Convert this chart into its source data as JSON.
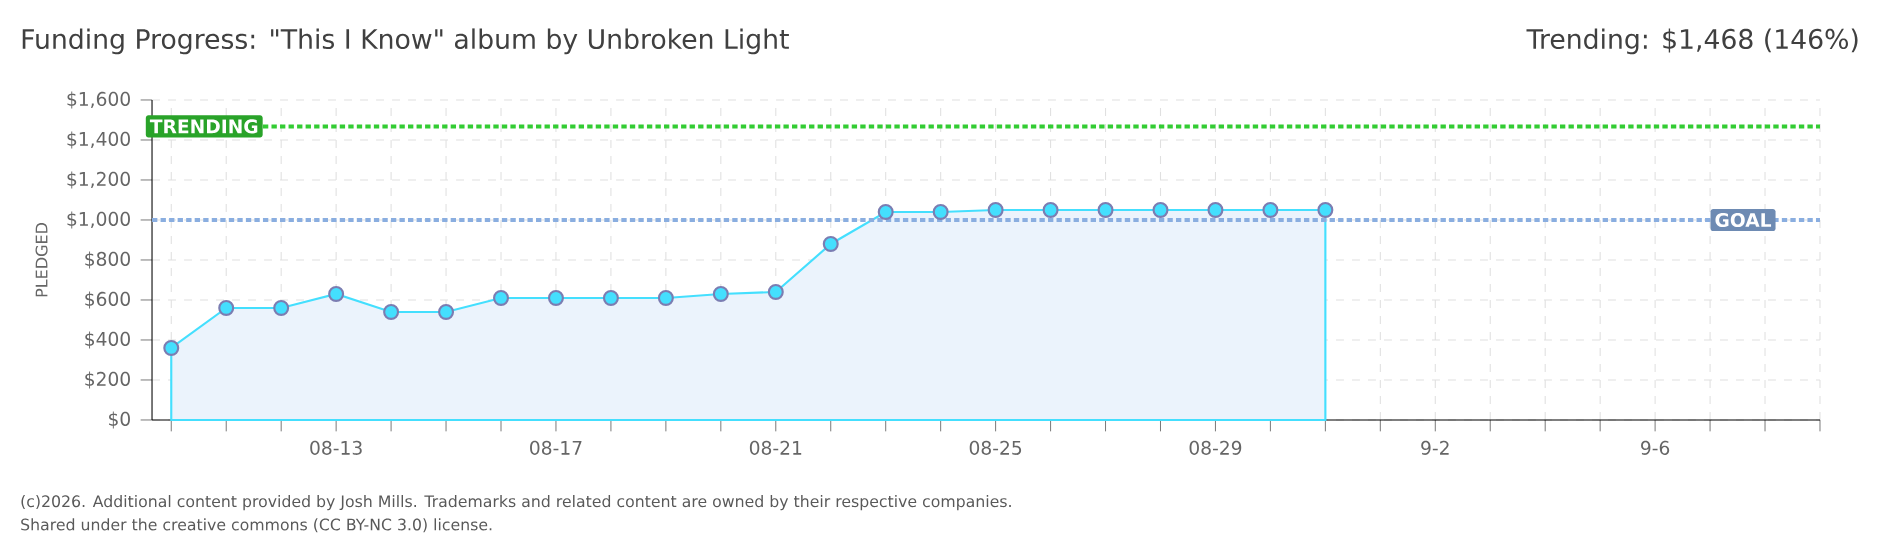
{
  "chart_data": {
    "type": "area",
    "title": "Funding Progress: \"This I Know\" album by Unbroken Light",
    "subtitle": "Trending: $1,468 (146%)",
    "ylabel": "PLEDGED",
    "categories": [
      null,
      null,
      null,
      "08-13",
      null,
      null,
      null,
      "08-17",
      null,
      null,
      null,
      "08-21",
      null,
      null,
      null,
      "08-25",
      null,
      null,
      null,
      "08-29",
      null,
      null,
      null,
      "9-2",
      null,
      null,
      null,
      "9-6",
      null,
      null,
      null
    ],
    "series": [
      {
        "color": "#ebf3fc",
        "values": [
          360,
          560,
          560,
          630,
          540,
          540,
          610,
          610,
          610,
          610,
          630,
          640,
          880,
          1040,
          1040,
          1050,
          1050,
          1050,
          1050,
          1050,
          1050,
          1050,
          null,
          null,
          null,
          null,
          null,
          null,
          null,
          null,
          null
        ]
      }
    ],
    "marker": "circle",
    "grid": true,
    "ylim": [
      0,
      1600
    ],
    "yticks": [
      {
        "value": 0,
        "label": "$0"
      },
      {
        "value": 200,
        "label": "$200"
      },
      {
        "value": 400,
        "label": "$400"
      },
      {
        "value": 600,
        "label": "$600"
      },
      {
        "value": 800,
        "label": "$800"
      },
      {
        "value": 1000,
        "label": "$1,000"
      },
      {
        "value": 1200,
        "label": "$1,200"
      },
      {
        "value": 1400,
        "label": "$1,400"
      },
      {
        "value": 1600,
        "label": "$1,600"
      }
    ],
    "ref_lines": [
      {
        "axis": "y",
        "value": 1468,
        "label": "TRENDING",
        "color": "#33cc33",
        "line_style": "dashed"
      },
      {
        "axis": "y",
        "value": 1000,
        "label": "GOAL",
        "color": "#8aaee0",
        "line_style": "dashed"
      }
    ],
    "annotations": [
      "(c)2026. Additional content provided by Josh Mills. Trademarks and related content are owned by their respective companies.",
      "Shared under the creative commons (CC BY-NC 3.0) license."
    ]
  }
}
